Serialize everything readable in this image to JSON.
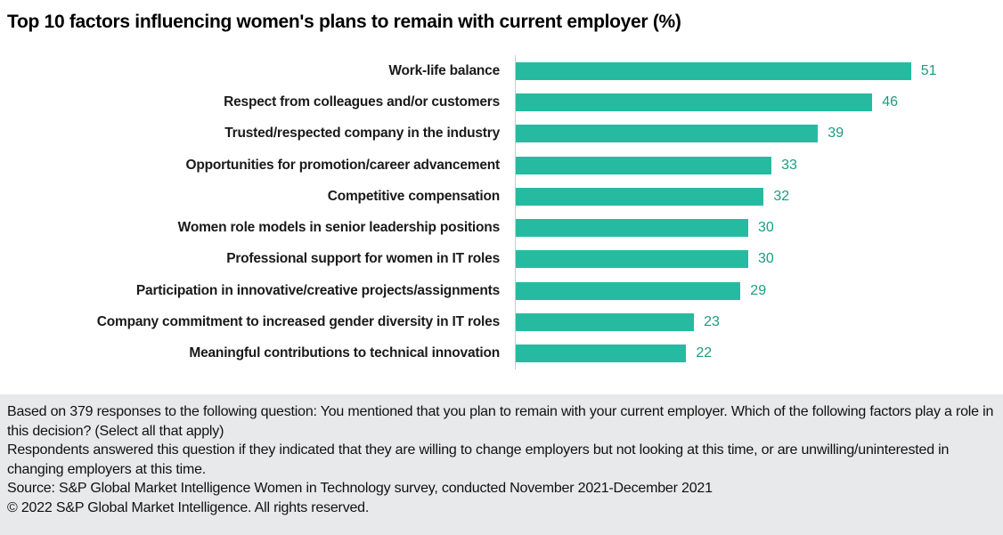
{
  "page": {
    "title": "Top 10 factors influencing women's plans to remain with current employer (%)"
  },
  "chart_data": {
    "type": "bar",
    "orientation": "horizontal",
    "title": "Top 10 factors influencing women's plans to remain with current employer (%)",
    "categories": [
      "Work-life balance",
      "Respect from colleagues and/or customers",
      "Trusted/respected company in the industry",
      "Opportunities for promotion/career advancement",
      "Competitive compensation",
      "Women role models in senior leadership positions",
      "Professional support for women in IT roles",
      "Participation in innovative/creative projects/assignments",
      "Company commitment to increased gender diversity in IT roles",
      "Meaningful contributions to technical innovation"
    ],
    "values": [
      51,
      46,
      39,
      33,
      32,
      30,
      30,
      29,
      23,
      22
    ],
    "xlabel": "",
    "ylabel": "",
    "xlim": [
      0,
      63
    ],
    "grid": false,
    "legend": false,
    "value_labels_shown": true,
    "bar_color": "#26bba1",
    "value_label_color": "#1a9c82",
    "axis_line_color": "#c9cbcc"
  },
  "footer": {
    "background": "#e8e9ea",
    "lines": [
      "Based on 379 responses to the following question: You mentioned that you plan to remain with your current employer. Which of the following factors play a role in this decision? (Select all that apply)",
      "Respondents answered this question if they indicated that they are willing to change employers but not looking at this time, or are unwilling/uninterested in changing employers at this time.",
      "Source: S&P Global Market Intelligence Women in Technology survey, conducted November 2021-December 2021",
      "© 2022 S&P Global Market Intelligence. All rights reserved."
    ]
  }
}
